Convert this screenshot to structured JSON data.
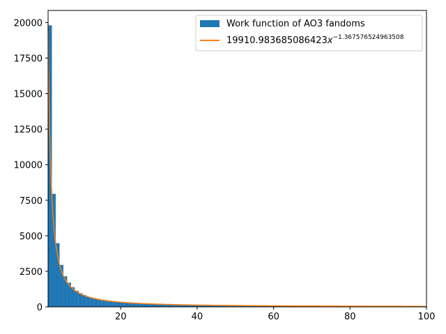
{
  "chart_data": {
    "type": "bar",
    "title": "",
    "xlabel": "",
    "ylabel": "",
    "xlim": [
      1,
      100
    ],
    "ylim": [
      0,
      20850
    ],
    "xticks": [
      20,
      40,
      60,
      80,
      100
    ],
    "yticks": [
      0,
      2500,
      5000,
      7500,
      10000,
      12500,
      15000,
      17500,
      20000
    ],
    "grid": false,
    "legend_position": "upper-right",
    "histogram": {
      "name": "Work function of AO3 fandoms",
      "color": "#1f77b4",
      "bin_width": 1,
      "x": [
        1,
        2,
        3,
        4,
        5,
        6,
        7,
        8,
        9,
        10,
        11,
        12,
        13,
        14,
        15,
        16,
        17,
        18,
        19,
        20,
        21,
        22,
        23,
        24,
        25,
        26,
        27,
        28,
        29,
        30,
        31,
        32,
        33,
        34,
        35,
        36,
        37,
        38,
        39,
        40,
        41,
        42,
        43,
        44,
        45,
        46,
        47,
        48,
        49,
        50,
        51,
        52,
        53,
        54,
        55,
        56,
        57,
        58,
        59,
        60,
        61,
        62,
        63,
        64,
        65,
        66,
        67,
        68,
        69,
        70,
        71,
        72,
        73,
        74,
        75,
        76,
        77,
        78,
        79,
        80,
        81,
        82,
        83,
        84,
        85,
        86,
        87,
        88,
        89,
        90,
        91,
        92,
        93,
        94,
        95,
        96,
        97,
        98,
        99
      ],
      "values": [
        19800,
        7950,
        4480,
        2950,
        2150,
        1700,
        1380,
        1130,
        960,
        830,
        720,
        630,
        560,
        505,
        455,
        410,
        375,
        345,
        320,
        295,
        275,
        258,
        242,
        228,
        215,
        203,
        192,
        182,
        173,
        165,
        157,
        150,
        143,
        137,
        131,
        126,
        121,
        116,
        112,
        108,
        104,
        100,
        97,
        94,
        91,
        88,
        85,
        83,
        80,
        78,
        76,
        74,
        72,
        70,
        68,
        66,
        65,
        63,
        62,
        60,
        59,
        58,
        56,
        55,
        54,
        53,
        52,
        51,
        50,
        49,
        48,
        47,
        46,
        45,
        44,
        44,
        43,
        42,
        41,
        41,
        40,
        39,
        39,
        38,
        37,
        37,
        36,
        36,
        35,
        35,
        34,
        34,
        33,
        33,
        32,
        32,
        31,
        31,
        30
      ]
    },
    "fit_line": {
      "name_prefix": "19910.983685086423",
      "name_var": "x",
      "name_exponent": "−1.367576524963508",
      "color": "#ff7f0e",
      "coefficient": 19910.983685086423,
      "exponent": -1.367576524963508
    }
  }
}
